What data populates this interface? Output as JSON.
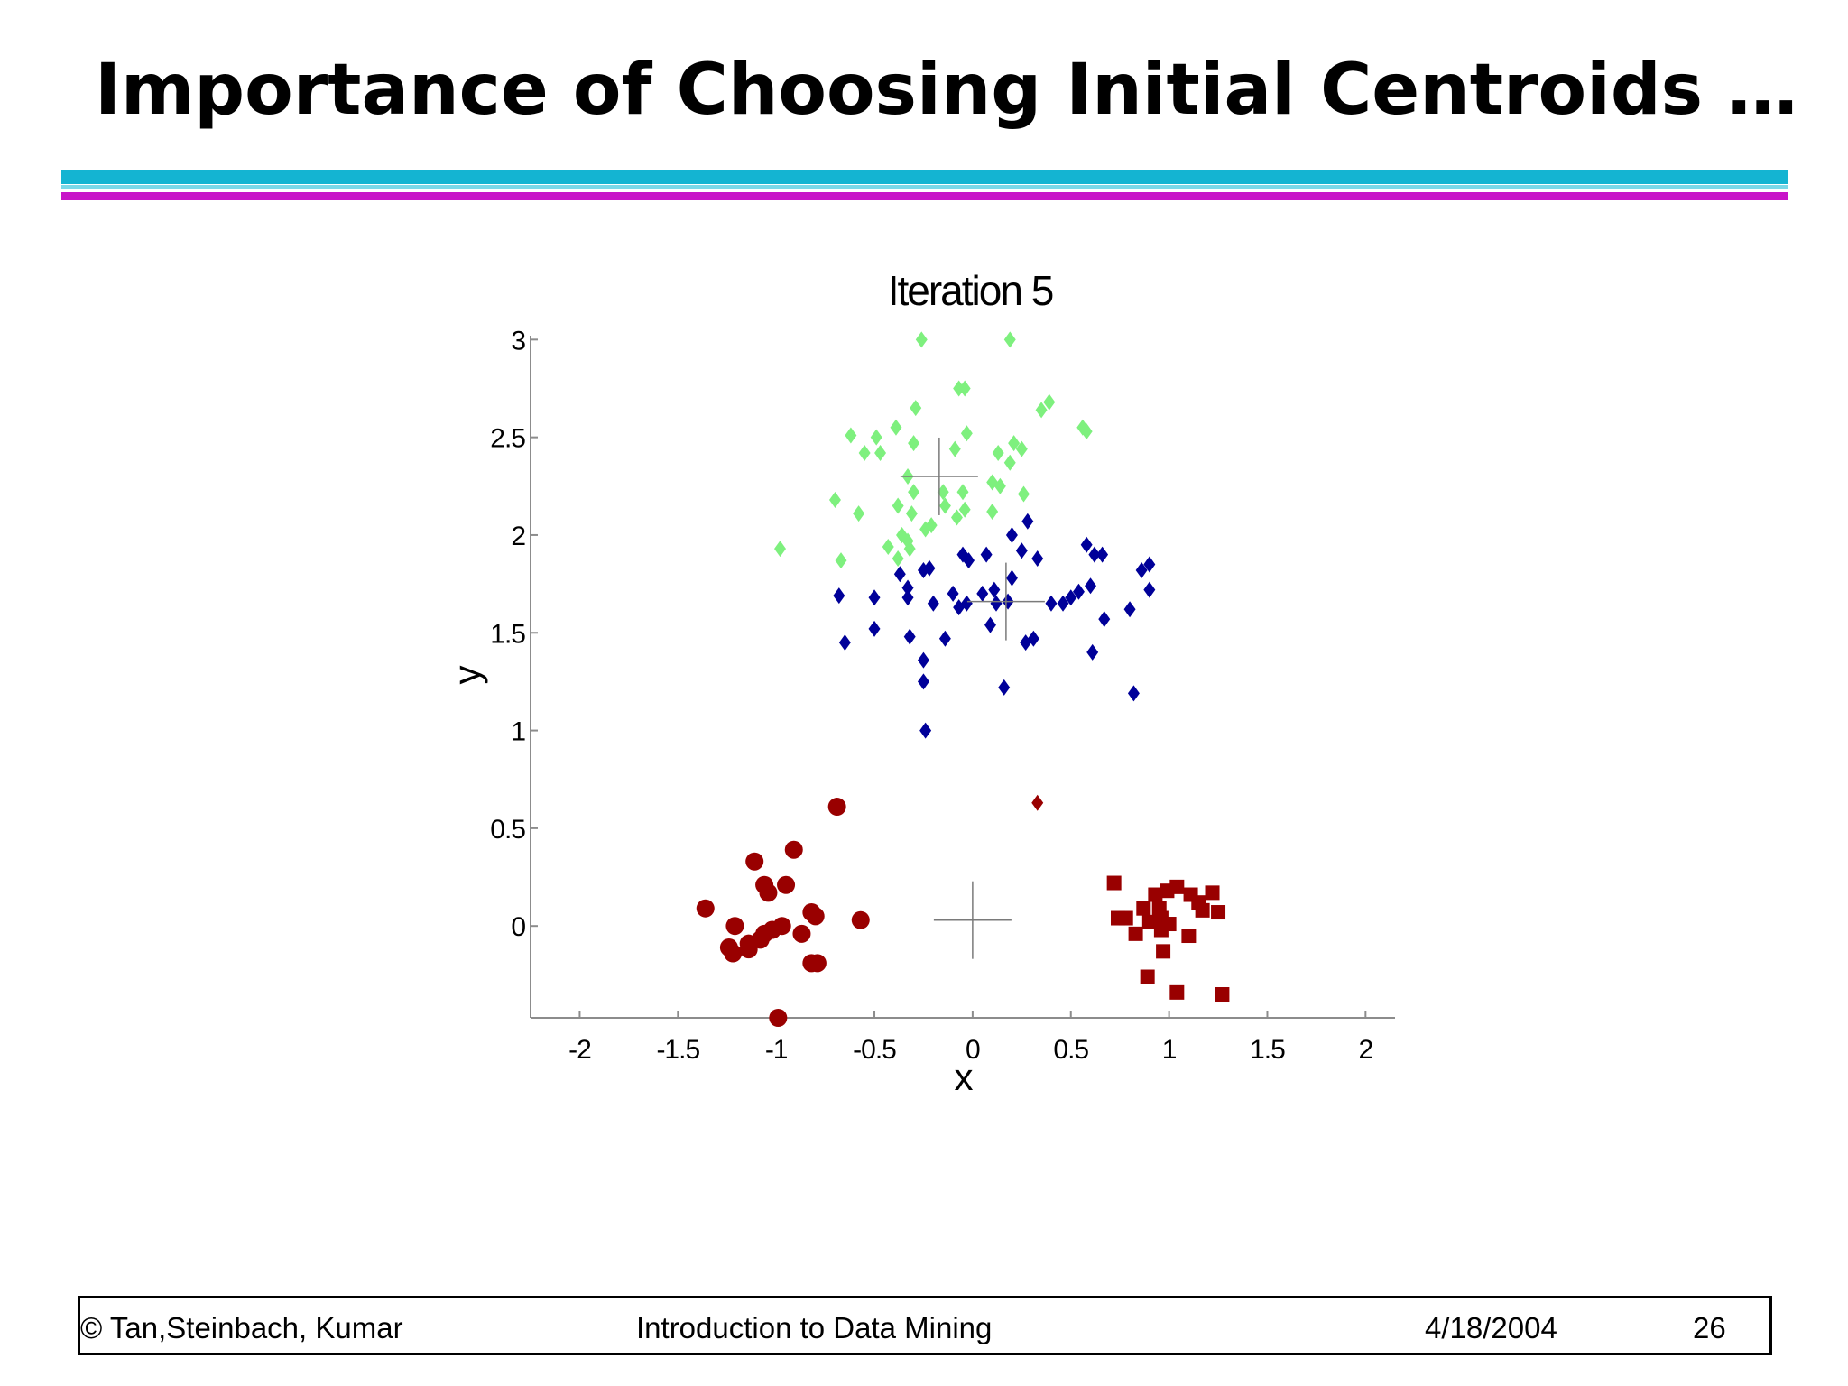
{
  "slide": {
    "title": "Importance of Choosing Initial Centroids …"
  },
  "footer": {
    "copyright": "© Tan,Steinbach, Kumar",
    "course": "Introduction to Data Mining",
    "date": "4/18/2004",
    "page": "26"
  },
  "chart_data": {
    "type": "scatter",
    "title": "Iteration 5",
    "xlabel": "x",
    "ylabel": "y",
    "xlim": [
      -2.25,
      2.15
    ],
    "ylim": [
      -0.47,
      3.02
    ],
    "xticks": [
      -2,
      -1.5,
      -1,
      -0.5,
      0,
      0.5,
      1,
      1.5,
      2
    ],
    "yticks": [
      0,
      0.5,
      1,
      1.5,
      2,
      2.5,
      3
    ],
    "grid": false,
    "series": [
      {
        "marker": "diamond",
        "color": "#7ef07e",
        "points": [
          [
            -0.26,
            3.0
          ],
          [
            0.19,
            3.0
          ],
          [
            -0.07,
            2.75
          ],
          [
            -0.04,
            2.75
          ],
          [
            0.35,
            2.64
          ],
          [
            0.39,
            2.68
          ],
          [
            -0.62,
            2.51
          ],
          [
            -0.49,
            2.5
          ],
          [
            -0.39,
            2.55
          ],
          [
            -0.29,
            2.65
          ],
          [
            -0.03,
            2.52
          ],
          [
            0.56,
            2.55
          ],
          [
            0.58,
            2.53
          ],
          [
            -0.55,
            2.42
          ],
          [
            -0.47,
            2.42
          ],
          [
            -0.3,
            2.47
          ],
          [
            -0.09,
            2.44
          ],
          [
            0.13,
            2.42
          ],
          [
            0.21,
            2.47
          ],
          [
            0.25,
            2.44
          ],
          [
            0.19,
            2.37
          ],
          [
            -0.33,
            2.3
          ],
          [
            -0.3,
            2.22
          ],
          [
            -0.15,
            2.22
          ],
          [
            -0.05,
            2.22
          ],
          [
            0.1,
            2.27
          ],
          [
            0.14,
            2.25
          ],
          [
            0.26,
            2.21
          ],
          [
            -0.7,
            2.18
          ],
          [
            -0.58,
            2.11
          ],
          [
            -0.38,
            2.15
          ],
          [
            -0.31,
            2.11
          ],
          [
            -0.14,
            2.15
          ],
          [
            -0.08,
            2.09
          ],
          [
            -0.04,
            2.13
          ],
          [
            0.1,
            2.12
          ],
          [
            -0.24,
            2.03
          ],
          [
            -0.21,
            2.05
          ],
          [
            -0.36,
            2.0
          ],
          [
            -0.33,
            1.97
          ],
          [
            -0.32,
            1.93
          ],
          [
            -0.38,
            1.88
          ],
          [
            -0.43,
            1.94
          ],
          [
            -0.98,
            1.93
          ],
          [
            -0.67,
            1.87
          ]
        ]
      },
      {
        "marker": "diamond",
        "color": "#000099",
        "points": [
          [
            0.28,
            2.07
          ],
          [
            0.2,
            2.0
          ],
          [
            -0.22,
            1.83
          ],
          [
            -0.25,
            1.82
          ],
          [
            -0.37,
            1.8
          ],
          [
            -0.33,
            1.73
          ],
          [
            -0.05,
            1.9
          ],
          [
            -0.02,
            1.87
          ],
          [
            0.07,
            1.9
          ],
          [
            0.25,
            1.92
          ],
          [
            0.33,
            1.88
          ],
          [
            0.58,
            1.95
          ],
          [
            0.62,
            1.9
          ],
          [
            0.66,
            1.9
          ],
          [
            0.86,
            1.82
          ],
          [
            0.9,
            1.85
          ],
          [
            0.2,
            1.78
          ],
          [
            -0.68,
            1.69
          ],
          [
            -0.5,
            1.68
          ],
          [
            -0.33,
            1.68
          ],
          [
            -0.2,
            1.65
          ],
          [
            -0.1,
            1.7
          ],
          [
            -0.07,
            1.63
          ],
          [
            -0.03,
            1.65
          ],
          [
            0.05,
            1.7
          ],
          [
            0.11,
            1.72
          ],
          [
            0.12,
            1.65
          ],
          [
            0.18,
            1.66
          ],
          [
            0.4,
            1.65
          ],
          [
            0.46,
            1.65
          ],
          [
            0.5,
            1.68
          ],
          [
            0.54,
            1.71
          ],
          [
            0.6,
            1.74
          ],
          [
            0.9,
            1.72
          ],
          [
            0.8,
            1.62
          ],
          [
            -0.65,
            1.45
          ],
          [
            -0.5,
            1.52
          ],
          [
            -0.32,
            1.48
          ],
          [
            -0.14,
            1.47
          ],
          [
            0.09,
            1.54
          ],
          [
            0.27,
            1.45
          ],
          [
            0.31,
            1.47
          ],
          [
            0.67,
            1.57
          ],
          [
            0.61,
            1.4
          ],
          [
            -0.25,
            1.36
          ],
          [
            -0.25,
            1.25
          ],
          [
            0.16,
            1.22
          ],
          [
            0.82,
            1.19
          ],
          [
            -0.24,
            1.0
          ]
        ]
      },
      {
        "marker": "diamond",
        "color": "#990000",
        "points": [
          [
            0.33,
            0.63
          ]
        ]
      },
      {
        "marker": "circle",
        "color": "#990000",
        "points": [
          [
            -0.69,
            0.61
          ],
          [
            -0.91,
            0.39
          ],
          [
            -1.11,
            0.33
          ],
          [
            -1.06,
            0.21
          ],
          [
            -1.04,
            0.17
          ],
          [
            -0.95,
            0.21
          ],
          [
            -1.36,
            0.09
          ],
          [
            -0.82,
            0.07
          ],
          [
            -0.8,
            0.05
          ],
          [
            -0.57,
            0.03
          ],
          [
            -1.21,
            0.0
          ],
          [
            -0.97,
            0.0
          ],
          [
            -1.02,
            -0.02
          ],
          [
            -1.06,
            -0.04
          ],
          [
            -0.87,
            -0.04
          ],
          [
            -1.08,
            -0.07
          ],
          [
            -1.14,
            -0.09
          ],
          [
            -1.24,
            -0.11
          ],
          [
            -1.22,
            -0.14
          ],
          [
            -1.14,
            -0.12
          ],
          [
            -0.82,
            -0.19
          ],
          [
            -0.79,
            -0.19
          ],
          [
            -0.99,
            -0.47
          ]
        ]
      },
      {
        "marker": "square",
        "color": "#990000",
        "points": [
          [
            0.72,
            0.22
          ],
          [
            0.99,
            0.18
          ],
          [
            1.04,
            0.2
          ],
          [
            0.93,
            0.16
          ],
          [
            1.11,
            0.16
          ],
          [
            1.22,
            0.17
          ],
          [
            1.15,
            0.12
          ],
          [
            0.87,
            0.09
          ],
          [
            0.95,
            0.09
          ],
          [
            1.17,
            0.08
          ],
          [
            1.25,
            0.07
          ],
          [
            0.74,
            0.04
          ],
          [
            0.78,
            0.04
          ],
          [
            0.9,
            0.02
          ],
          [
            0.96,
            0.04
          ],
          [
            1.0,
            0.01
          ],
          [
            0.96,
            -0.02
          ],
          [
            0.83,
            -0.04
          ],
          [
            1.1,
            -0.05
          ],
          [
            0.97,
            -0.13
          ],
          [
            0.89,
            -0.26
          ],
          [
            1.04,
            -0.34
          ],
          [
            1.27,
            -0.35
          ]
        ]
      }
    ],
    "centroid_markers": [
      [
        -0.17,
        2.3
      ],
      [
        0.17,
        1.66
      ],
      [
        0.0,
        0.03
      ]
    ]
  }
}
